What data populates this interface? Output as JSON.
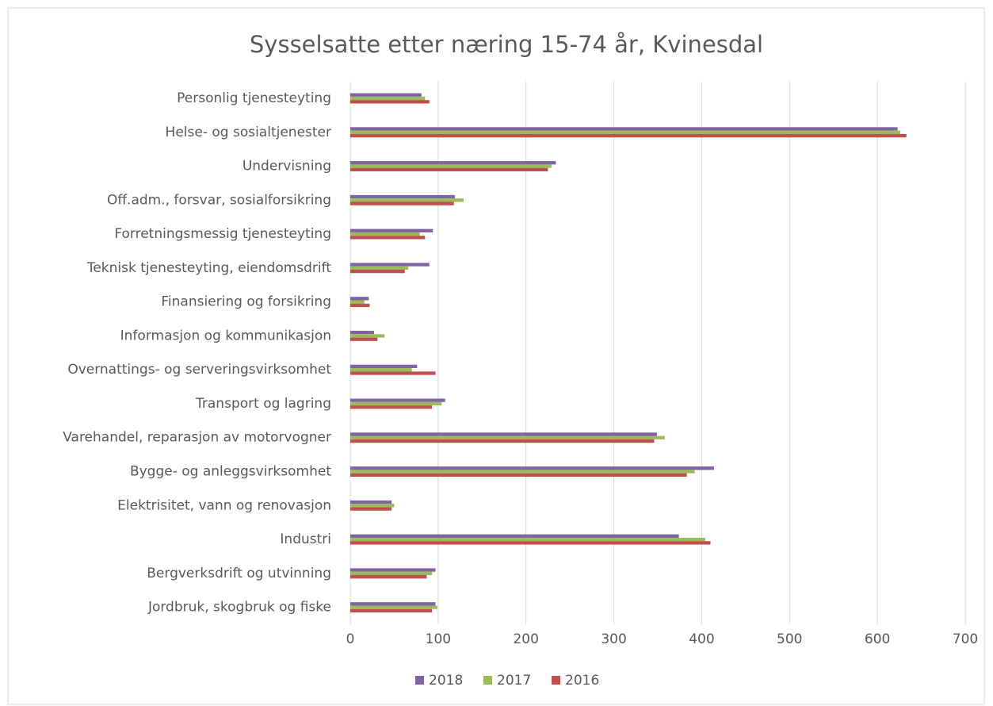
{
  "chart_data": {
    "type": "barh",
    "title": "Sysselsatte etter næring 15-74 år, Kvinesdal",
    "categories": [
      "Personlig tjenesteyting",
      "Helse- og sosialtjenester",
      "Undervisning",
      "Off.adm., forsvar, sosialforsikring",
      "Forretningsmessig tjenesteyting",
      "Teknisk tjenesteyting, eiendomsdrift",
      "Finansiering og forsikring",
      "Informasjon og kommunikasjon",
      "Overnattings- og serveringsvirksomhet",
      "Transport og lagring",
      "Varehandel, reparasjon av motorvogner",
      "Bygge- og anleggsvirksomhet",
      "Elektrisitet, vann og renovasjon",
      "Industri",
      "Bergverksdrift og utvinning",
      "Jordbruk, skogbruk og fiske"
    ],
    "series": [
      {
        "name": "2018",
        "color": "#8064a2",
        "values": [
          81,
          623,
          234,
          119,
          94,
          90,
          21,
          27,
          76,
          108,
          349,
          414,
          47,
          374,
          97,
          97
        ]
      },
      {
        "name": "2017",
        "color": "#9bbb59",
        "values": [
          85,
          626,
          229,
          129,
          79,
          66,
          16,
          39,
          70,
          104,
          358,
          392,
          50,
          404,
          93,
          99
        ]
      },
      {
        "name": "2016",
        "color": "#c0504d",
        "values": [
          90,
          633,
          225,
          118,
          85,
          62,
          22,
          31,
          97,
          93,
          346,
          383,
          47,
          410,
          87,
          93
        ]
      }
    ],
    "xlim": [
      0,
      700
    ],
    "xticks": [
      0,
      100,
      200,
      300,
      400,
      500,
      600,
      700
    ],
    "grid": true
  }
}
